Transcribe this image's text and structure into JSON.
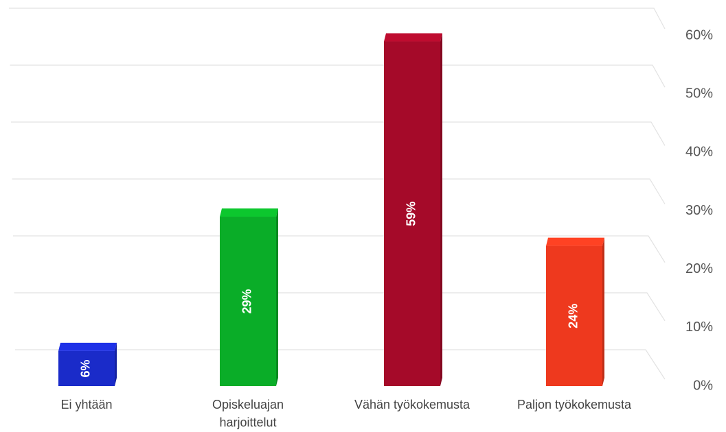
{
  "chart_data": {
    "type": "bar",
    "categories": [
      "Ei yhtään",
      "Opiskeluajan\nharjoittelut",
      "Vähän työkokemusta",
      "Paljon työkokemusta"
    ],
    "values": [
      6,
      29,
      59,
      24
    ],
    "value_labels": [
      "6%",
      "29%",
      "59%",
      "24%"
    ],
    "colors": [
      "#1a2bc9",
      "#0aad28",
      "#a50a29",
      "#ee391e"
    ],
    "ylim": [
      0,
      60
    ],
    "yticks": [
      {
        "value": 0,
        "label": "0%"
      },
      {
        "value": 10,
        "label": "10%"
      },
      {
        "value": 20,
        "label": "20%"
      },
      {
        "value": 30,
        "label": "30%"
      },
      {
        "value": 40,
        "label": "40%"
      },
      {
        "value": 50,
        "label": "50%"
      },
      {
        "value": 60,
        "label": "60%"
      }
    ],
    "grid": true
  }
}
